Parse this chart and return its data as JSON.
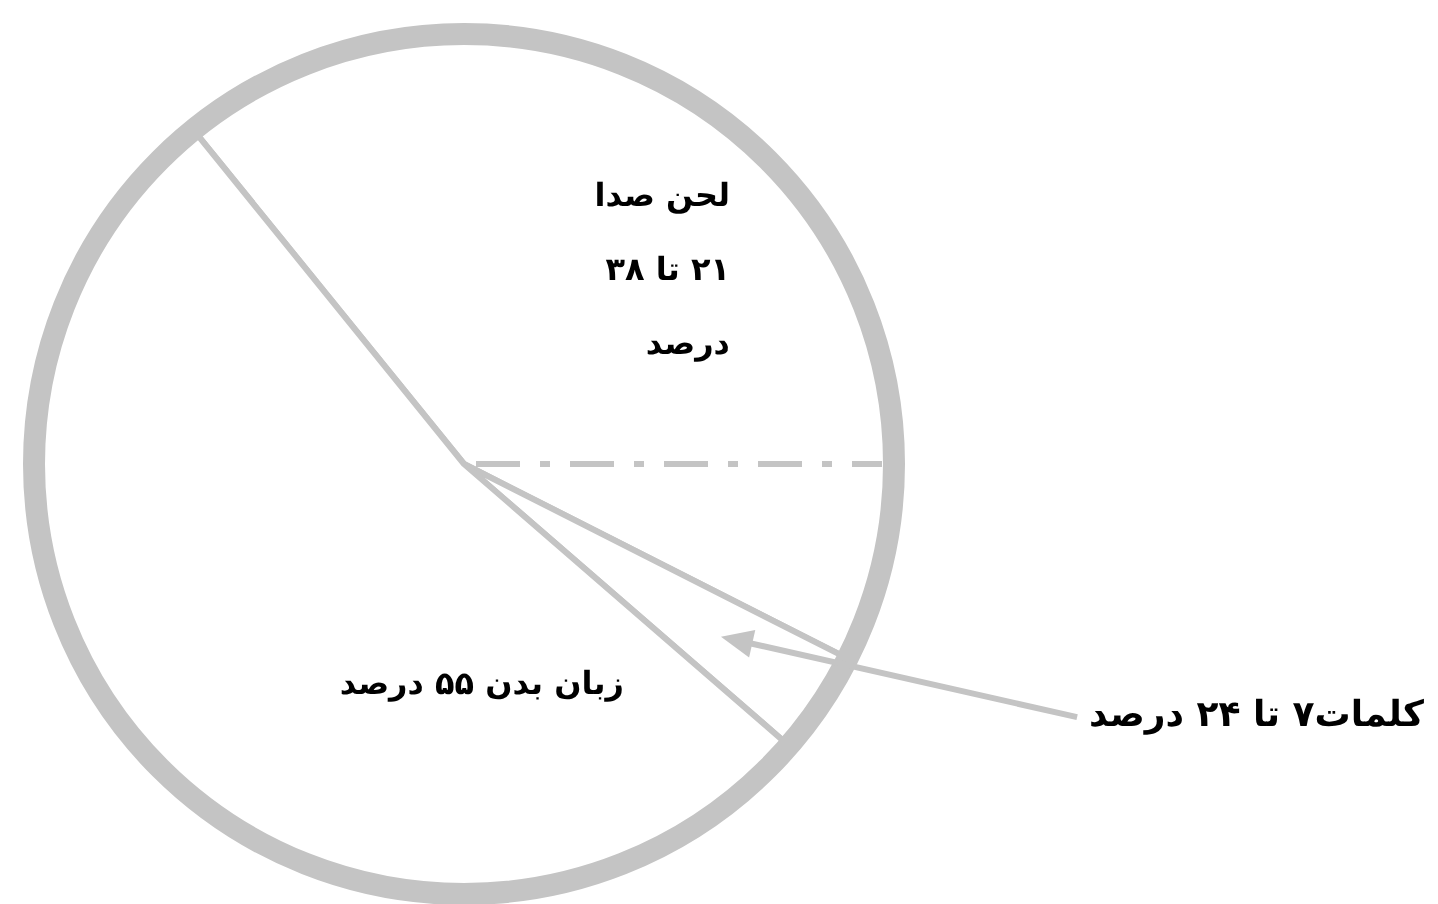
{
  "chart_data": {
    "type": "pie",
    "categories": [
      "لحن صدا\n۲۱ تا ۳۸\nدرصد",
      "کلمات۷ تا ۲۴ درصد",
      "زبان بدن ۵۵ درصد"
    ],
    "values": [
      43.3,
      3.9,
      52.8
    ],
    "colors": [
      "#ffffff",
      "#ffffff",
      "#ffffff"
    ]
  }
}
